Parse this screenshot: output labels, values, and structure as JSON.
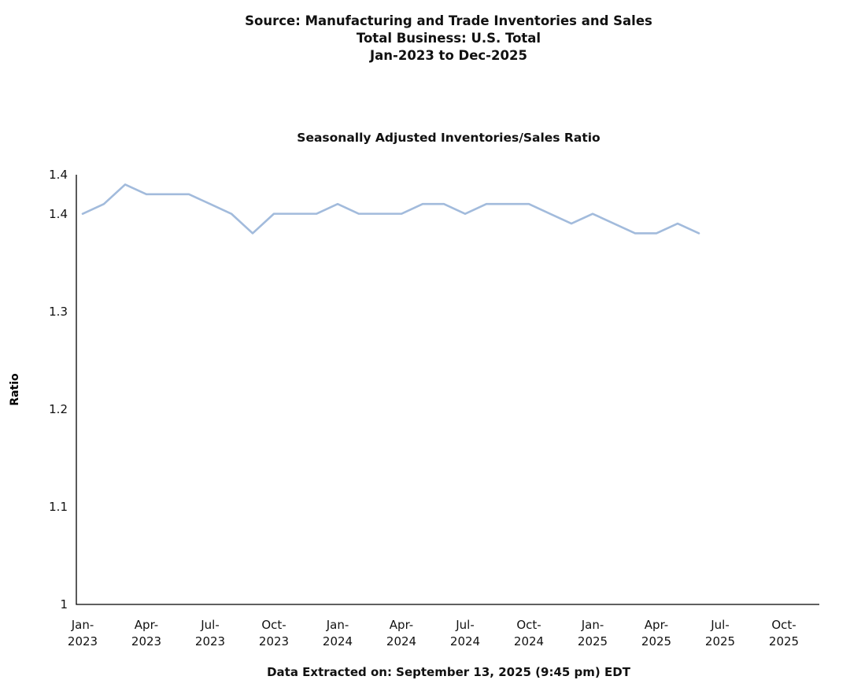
{
  "header": {
    "line1": "Source: Manufacturing and Trade Inventories and Sales",
    "line2": "Total Business: U.S. Total",
    "line3": "Jan-2023 to Dec-2025"
  },
  "chart_data": {
    "type": "line",
    "title": "Seasonally Adjusted Inventories/Sales Ratio",
    "xlabel": "",
    "ylabel": "Ratio",
    "ylim": [
      1,
      1.44
    ],
    "grid": false,
    "legend": "none",
    "line_color": "#a2bbdc",
    "axis_color": "#000000",
    "x": [
      "Jan-2023",
      "Feb-2023",
      "Mar-2023",
      "Apr-2023",
      "May-2023",
      "Jun-2023",
      "Jul-2023",
      "Aug-2023",
      "Sep-2023",
      "Oct-2023",
      "Nov-2023",
      "Dec-2023",
      "Jan-2024",
      "Feb-2024",
      "Mar-2024",
      "Apr-2024",
      "May-2024",
      "Jun-2024",
      "Jul-2024",
      "Aug-2024",
      "Sep-2024",
      "Oct-2024",
      "Nov-2024",
      "Dec-2024",
      "Jan-2025",
      "Feb-2025",
      "Mar-2025",
      "Apr-2025",
      "May-2025",
      "Jun-2025"
    ],
    "values": [
      1.4,
      1.41,
      1.43,
      1.42,
      1.42,
      1.42,
      1.41,
      1.4,
      1.38,
      1.4,
      1.4,
      1.4,
      1.41,
      1.4,
      1.4,
      1.4,
      1.41,
      1.41,
      1.4,
      1.41,
      1.41,
      1.41,
      1.4,
      1.39,
      1.4,
      1.39,
      1.38,
      1.38,
      1.39,
      1.38
    ],
    "x_axis_ticks": [
      {
        "month": "Jan-",
        "year": "2023"
      },
      {
        "month": "Apr-",
        "year": "2023"
      },
      {
        "month": "Jul-",
        "year": "2023"
      },
      {
        "month": "Oct-",
        "year": "2023"
      },
      {
        "month": "Jan-",
        "year": "2024"
      },
      {
        "month": "Apr-",
        "year": "2024"
      },
      {
        "month": "Jul-",
        "year": "2024"
      },
      {
        "month": "Oct-",
        "year": "2024"
      },
      {
        "month": "Jan-",
        "year": "2025"
      },
      {
        "month": "Apr-",
        "year": "2025"
      },
      {
        "month": "Jul-",
        "year": "2025"
      },
      {
        "month": "Oct-",
        "year": "2025"
      }
    ],
    "y_axis_ticks": [
      {
        "value": 1,
        "label": "1"
      },
      {
        "value": 1.1,
        "label": "1.1"
      },
      {
        "value": 1.2,
        "label": "1.2"
      },
      {
        "value": 1.3,
        "label": "1.3"
      },
      {
        "value": 1.4,
        "label": "1.4"
      },
      {
        "value": 1.44,
        "label": "1.4"
      }
    ]
  },
  "footer": {
    "text": "Data Extracted on: September 13, 2025 (9:45 pm) EDT"
  }
}
